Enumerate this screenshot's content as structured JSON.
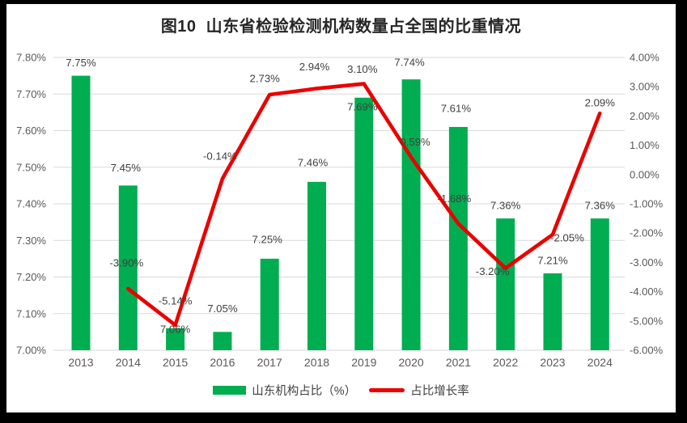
{
  "chart_data": {
    "type": "bar+line combo",
    "title": "图10  山东省检验检测机构数量占全国的比重情况",
    "categories": [
      "2013",
      "2014",
      "2015",
      "2016",
      "2017",
      "2018",
      "2019",
      "2020",
      "2021",
      "2022",
      "2023",
      "2024"
    ],
    "series": [
      {
        "name": "山东机构占比（%）",
        "type": "bar",
        "axis": "left",
        "color": "#00AD50",
        "values": [
          7.75,
          7.45,
          7.06,
          7.05,
          7.25,
          7.46,
          7.69,
          7.74,
          7.61,
          7.36,
          7.21,
          7.36
        ],
        "labels": [
          "7.75%",
          "7.45%",
          "7.06%",
          "7.05%",
          "7.25%",
          "7.46%",
          "7.69%",
          "7.74%",
          "7.61%",
          "7.36%",
          "7.21%",
          "7.36%"
        ]
      },
      {
        "name": "占比增长率",
        "type": "line",
        "axis": "right",
        "color": "#EB0000",
        "values": [
          null,
          -3.9,
          -5.14,
          -0.14,
          2.73,
          2.94,
          3.1,
          0.59,
          -1.68,
          -3.2,
          -2.05,
          2.09
        ],
        "labels": [
          null,
          "-3.90%",
          "-5.14%",
          "-0.14%",
          "2.73%",
          "2.94%",
          "3.10%",
          "0.59%",
          "-1.68%",
          "-3.20%",
          "-2.05%",
          "2.09%"
        ]
      }
    ],
    "left_axis": {
      "min": 7.0,
      "max": 7.8,
      "tick_labels": [
        "7.80%",
        "7.70%",
        "7.60%",
        "7.50%",
        "7.40%",
        "7.30%",
        "7.20%",
        "7.10%",
        "7.00%"
      ]
    },
    "right_axis": {
      "min": -6.0,
      "max": 4.0,
      "tick_labels": [
        "4.00%",
        "3.00%",
        "2.00%",
        "1.00%",
        "0.00%",
        "-1.00%",
        "-2.00%",
        "-3.00%",
        "-4.00%",
        "-5.00%",
        "-6.00%"
      ]
    },
    "grid": true,
    "legend_position": "bottom",
    "colors": {
      "grid": "#D9D9D9",
      "axis_text": "#595959",
      "data_label_text": "#404040",
      "title_text": "#262626",
      "plot_background": "#FFFFFF",
      "frame_border": "#000000"
    }
  }
}
